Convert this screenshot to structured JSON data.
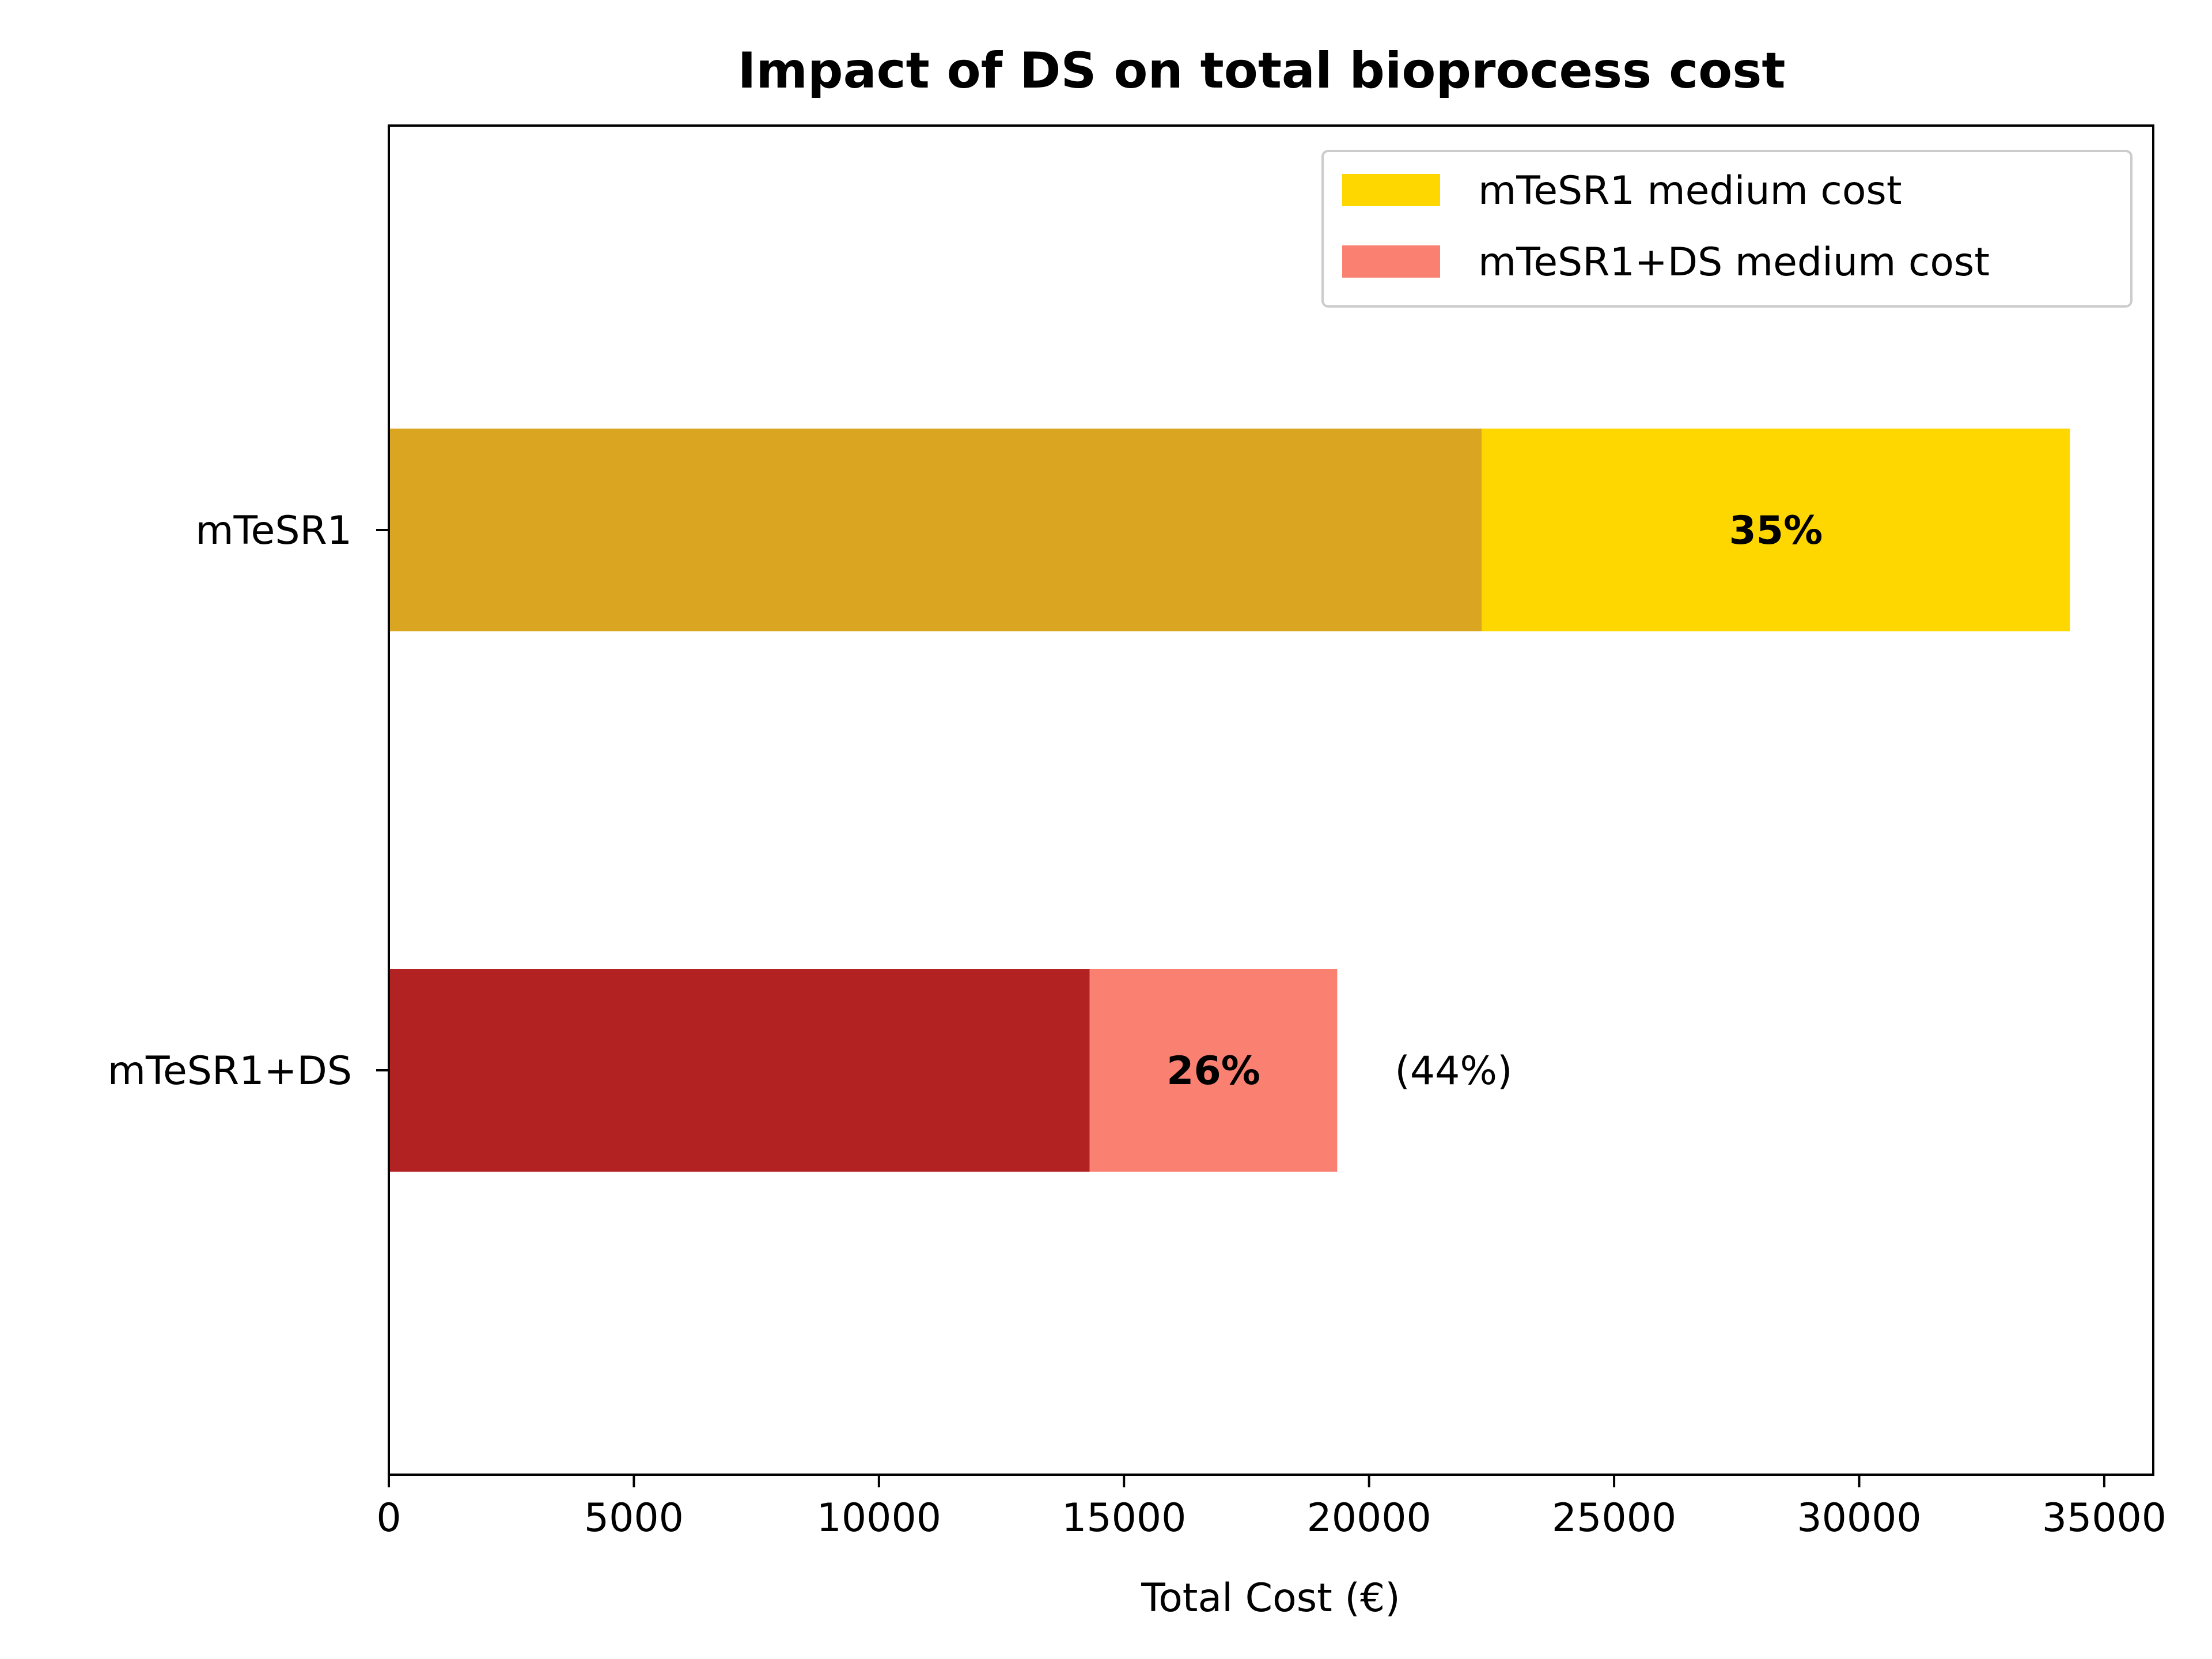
{
  "chart_data": {
    "type": "bar",
    "orientation": "horizontal",
    "stacked": true,
    "title": "Impact of DS on total bioprocess cost",
    "xlabel": "Total Cost (€)",
    "ylabel": "",
    "xlim": [
      0,
      36000
    ],
    "xticks": [
      0,
      5000,
      10000,
      15000,
      20000,
      25000,
      30000,
      35000
    ],
    "xtick_labels": [
      "0",
      "5000",
      "10000",
      "15000",
      "20000",
      "25000",
      "30000",
      "35000"
    ],
    "categories": [
      "mTeSR1",
      "mTeSR1+DS"
    ],
    "grid": false,
    "legend_position": "top-right",
    "legend": [
      {
        "label": "mTeSR1 medium cost",
        "color": "#FFD700"
      },
      {
        "label": "mTeSR1+DS medium cost",
        "color": "#FA8072"
      }
    ],
    "bars": [
      {
        "category": "mTeSR1",
        "base_value": 22300,
        "medium_value": 12000,
        "total": 34300,
        "base_color": "#DAA520",
        "medium_color": "#FFD700",
        "label": "35%"
      },
      {
        "category": "mTeSR1+DS",
        "base_value": 14300,
        "medium_value": 5050,
        "total": 19350,
        "base_color": "#B22222",
        "medium_color": "#FA8072",
        "label": "26%",
        "annotation": "(44%)"
      }
    ]
  }
}
